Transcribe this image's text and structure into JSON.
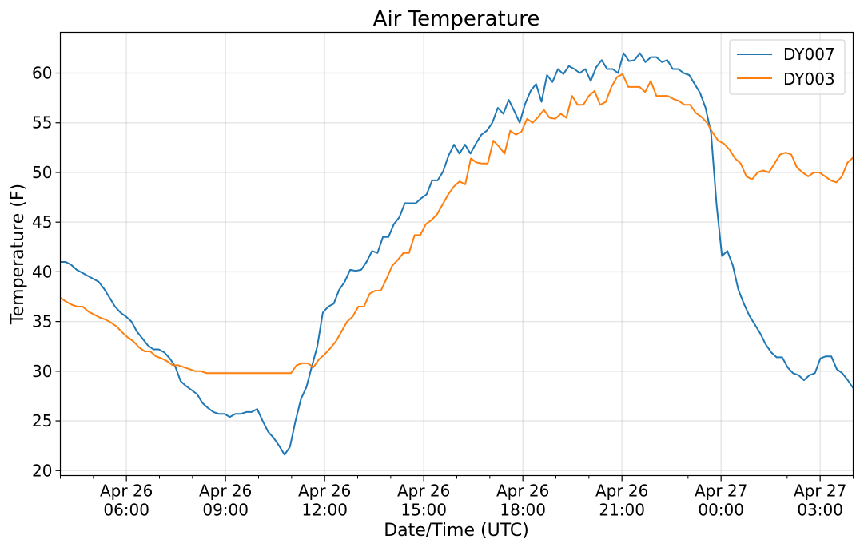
{
  "chart_data": {
    "type": "line",
    "title": "Air Temperature",
    "xlabel": "Date/Time (UTC)",
    "ylabel": "Temperature (F)",
    "x_unit": "hours since Apr 26 00:00 UTC",
    "xlim": [
      4,
      28
    ],
    "ylim": [
      19.5,
      64.1
    ],
    "yticks": [
      20,
      25,
      30,
      35,
      40,
      45,
      50,
      55,
      60
    ],
    "xticks": [
      {
        "value": 6,
        "label": [
          "Apr 26",
          "06:00"
        ]
      },
      {
        "value": 9,
        "label": [
          "Apr 26",
          "09:00"
        ]
      },
      {
        "value": 12,
        "label": [
          "Apr 26",
          "12:00"
        ]
      },
      {
        "value": 15,
        "label": [
          "Apr 26",
          "15:00"
        ]
      },
      {
        "value": 18,
        "label": [
          "Apr 26",
          "18:00"
        ]
      },
      {
        "value": 21,
        "label": [
          "Apr 26",
          "21:00"
        ]
      },
      {
        "value": 24,
        "label": [
          "Apr 27",
          "00:00"
        ]
      },
      {
        "value": 27,
        "label": [
          "Apr 27",
          "03:00"
        ]
      }
    ],
    "minor_xtick_step_hours": 1,
    "grid": true,
    "legend_position": "top-right",
    "series": [
      {
        "name": "DY007",
        "color": "#1f77b4",
        "x_start": 4,
        "x_end": 28,
        "values": [
          41.0,
          41.0,
          40.7,
          40.2,
          39.9,
          39.6,
          39.3,
          39.0,
          38.3,
          37.4,
          36.5,
          35.9,
          35.5,
          35.0,
          34.0,
          33.3,
          32.6,
          32.2,
          32.2,
          31.9,
          31.3,
          30.5,
          29.0,
          28.5,
          28.1,
          27.7,
          26.8,
          26.3,
          25.9,
          25.7,
          25.7,
          25.4,
          25.7,
          25.7,
          25.9,
          25.9,
          26.2,
          25.0,
          23.9,
          23.3,
          22.5,
          21.6,
          22.4,
          25.0,
          27.2,
          28.4,
          30.5,
          32.5,
          35.9,
          36.5,
          36.8,
          38.2,
          39.0,
          40.2,
          40.1,
          40.2,
          41.0,
          42.1,
          41.9,
          43.5,
          43.5,
          44.8,
          45.5,
          46.9,
          46.9,
          46.9,
          47.4,
          47.8,
          49.2,
          49.2,
          50.1,
          51.7,
          52.8,
          51.9,
          52.8,
          51.9,
          52.9,
          53.8,
          54.2,
          55.0,
          56.5,
          55.9,
          57.3,
          56.2,
          55.0,
          56.9,
          58.2,
          58.9,
          57.1,
          59.8,
          59.1,
          60.4,
          59.9,
          60.7,
          60.4,
          60.0,
          60.4,
          59.2,
          60.6,
          61.3,
          60.4,
          60.4,
          60.0,
          62.0,
          61.2,
          61.3,
          62.0,
          61.1,
          61.6,
          61.6,
          61.1,
          61.3,
          60.4,
          60.4,
          60.0,
          59.8,
          58.9,
          58.0,
          56.5,
          54.0,
          46.8,
          41.6,
          42.1,
          40.6,
          38.2,
          36.8,
          35.6,
          34.7,
          33.8,
          32.7,
          31.9,
          31.4,
          31.4,
          30.4,
          29.8,
          29.6,
          29.1,
          29.6,
          29.8,
          31.3,
          31.5,
          31.5,
          30.2,
          29.8,
          29.1,
          28.3
        ]
      },
      {
        "name": "DY003",
        "color": "#ff7f0e",
        "x_start": 4,
        "x_end": 28,
        "values": [
          37.4,
          37.0,
          36.7,
          36.5,
          36.5,
          36.0,
          35.7,
          35.4,
          35.2,
          34.9,
          34.5,
          33.9,
          33.4,
          33.0,
          32.4,
          32.0,
          32.0,
          31.5,
          31.3,
          31.0,
          30.6,
          30.6,
          30.4,
          30.2,
          30.0,
          30.0,
          29.8,
          29.8,
          29.8,
          29.8,
          29.8,
          29.8,
          29.8,
          29.8,
          29.8,
          29.8,
          29.8,
          29.8,
          29.8,
          29.8,
          29.8,
          29.8,
          30.6,
          30.8,
          30.8,
          30.4,
          31.2,
          31.7,
          32.3,
          33.0,
          34.0,
          35.0,
          35.5,
          36.5,
          36.5,
          37.8,
          38.1,
          38.1,
          39.3,
          40.6,
          41.2,
          41.9,
          41.9,
          43.7,
          43.7,
          44.8,
          45.2,
          45.8,
          46.8,
          47.8,
          48.6,
          49.1,
          48.8,
          51.4,
          51.0,
          50.9,
          50.9,
          53.2,
          52.6,
          51.9,
          54.2,
          53.8,
          54.1,
          55.4,
          55.0,
          55.6,
          56.3,
          55.5,
          55.4,
          55.9,
          55.5,
          57.7,
          56.8,
          56.8,
          57.7,
          58.2,
          56.8,
          57.1,
          58.6,
          59.6,
          59.9,
          58.6,
          58.6,
          58.6,
          58.1,
          59.2,
          57.7,
          57.7,
          57.7,
          57.4,
          57.2,
          56.8,
          56.8,
          56.0,
          55.6,
          55.0,
          54.0,
          53.2,
          52.9,
          52.3,
          51.4,
          50.9,
          49.6,
          49.3,
          50.0,
          50.2,
          50.0,
          50.9,
          51.8,
          52.0,
          51.8,
          50.5,
          50.0,
          49.6,
          50.0,
          50.0,
          49.6,
          49.2,
          49.0,
          49.6,
          51.0,
          51.5
        ]
      }
    ]
  }
}
